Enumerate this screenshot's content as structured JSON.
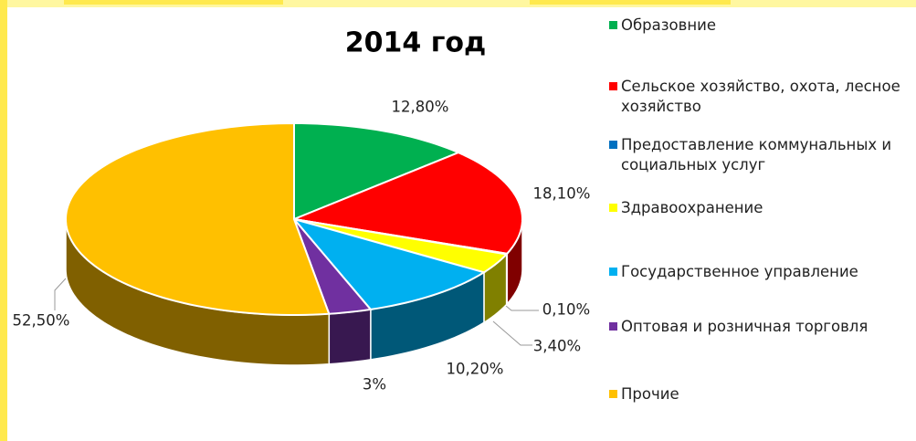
{
  "chart_data": {
    "type": "pie3d",
    "title": "2014 год",
    "categories": [
      "Образовние",
      "Сельское хозяйство, охота, лесное хозяйство",
      "Предоставление коммунальных и социальных услуг",
      "Здравоохранение",
      "Государственное управление",
      "Оптовая и розничная торговля",
      "Прочие"
    ],
    "values": [
      12.8,
      18.1,
      0.1,
      3.4,
      10.2,
      3,
      52.5
    ],
    "value_labels": [
      "12,80%",
      "18,10%",
      "0,10%",
      "3,40%",
      "10,20%",
      "3%",
      "52,50%"
    ],
    "colors": [
      "#00b050",
      "#ff0000",
      "#0070c0",
      "#ffff00",
      "#00b0f0",
      "#7030a0",
      "#ffc000"
    ],
    "legend": "right"
  }
}
